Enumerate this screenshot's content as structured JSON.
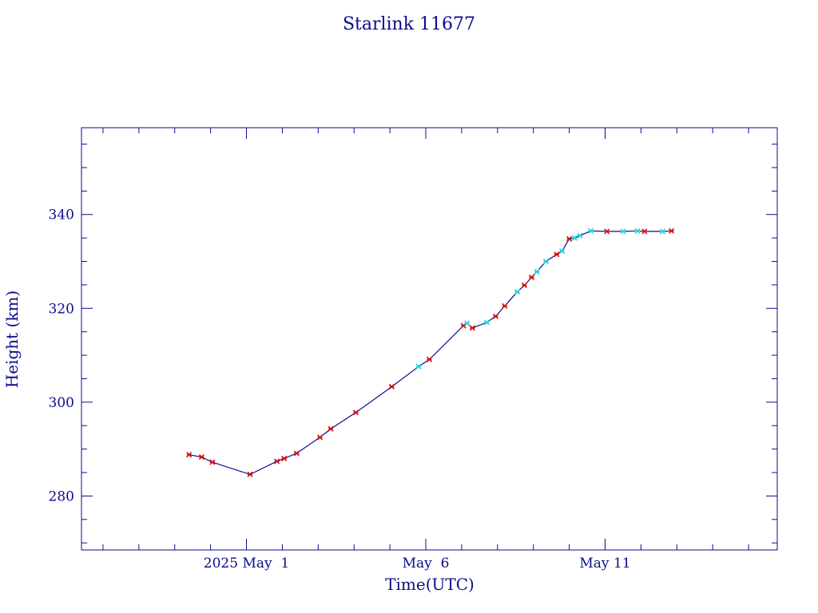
{
  "chart_data": {
    "type": "scatter",
    "title": "Starlink 11677",
    "xlabel": "Time(UTC)",
    "ylabel": "Height (km)",
    "x_unit": "days",
    "x_tick_labels": [
      {
        "label": "2025 May  1",
        "day": 1
      },
      {
        "label": "May  6",
        "day": 6
      },
      {
        "label": "May 11",
        "day": 11
      }
    ],
    "xlim": [
      -3.6,
      15.8
    ],
    "ylim": [
      268.5,
      358.5
    ],
    "y_ticks": [
      280,
      300,
      320,
      340
    ],
    "grid": false,
    "colors": {
      "frame": "#0b0b8f",
      "line": "#0b0b8f",
      "marker_primary": "#d01010",
      "marker_secondary": "#20d0e0"
    },
    "series": [
      {
        "x": [
          -0.6,
          -0.25,
          0.05,
          1.1,
          1.85,
          2.05,
          2.4,
          3.05,
          3.35,
          4.05,
          5.05,
          5.8,
          6.1,
          7.05,
          7.15,
          7.3,
          7.7,
          7.95,
          8.2,
          8.55,
          8.75,
          8.95,
          9.1,
          9.35,
          9.65,
          9.8,
          10.0,
          10.15,
          10.3,
          10.6,
          11.05,
          11.5,
          11.9,
          12.1,
          12.6,
          12.85
        ],
        "y": [
          288.8,
          288.3,
          287.2,
          284.6,
          287.4,
          288.0,
          289.1,
          292.5,
          294.3,
          297.8,
          303.3,
          307.6,
          309.1,
          316.3,
          316.8,
          315.8,
          317.0,
          318.3,
          320.5,
          323.5,
          324.9,
          326.6,
          327.8,
          330.0,
          331.5,
          332.2,
          334.8,
          335.0,
          335.5,
          336.5,
          336.4,
          336.4,
          336.5,
          336.4,
          336.4,
          336.5
        ],
        "marker_type": [
          "primary",
          "primary",
          "primary",
          "primary",
          "primary",
          "primary",
          "primary",
          "primary",
          "primary",
          "primary",
          "primary",
          "secondary",
          "primary",
          "primary",
          "secondary",
          "primary",
          "secondary",
          "primary",
          "primary",
          "secondary",
          "primary",
          "primary",
          "secondary",
          "secondary",
          "primary",
          "secondary",
          "primary",
          "secondary",
          "secondary",
          "secondary",
          "primary",
          "secondary",
          "secondary",
          "primary",
          "secondary",
          "primary"
        ]
      }
    ]
  }
}
